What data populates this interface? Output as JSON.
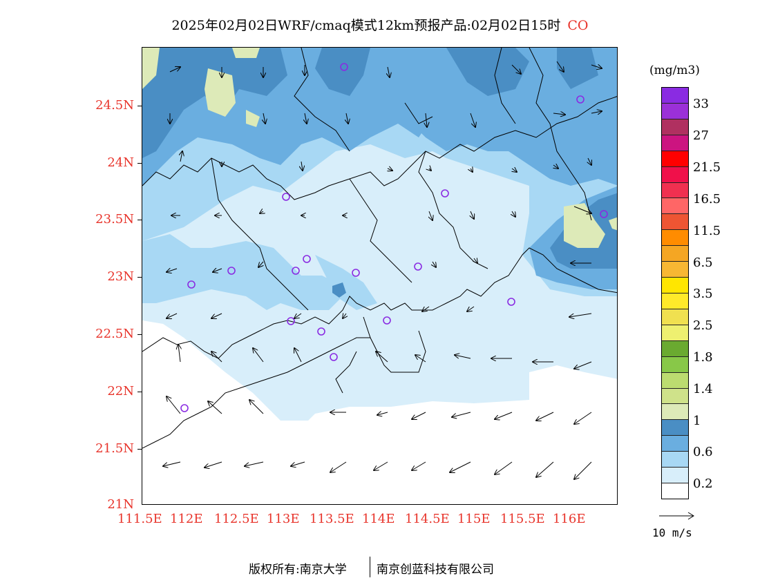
{
  "title": "2025年02月02日WRF/cmaq模式12km预报产品:02月02日15时",
  "species": "CO",
  "lat_labels": [
    "24.5N",
    "24N",
    "23.5N",
    "23N",
    "22.5N",
    "22N",
    "21.5N",
    "21N"
  ],
  "lon_labels": [
    "111.5E",
    "112E",
    "112.5E",
    "113E",
    "113.5E",
    "114E",
    "114.5E",
    "115E",
    "115.5E",
    "116E"
  ],
  "colorbar": {
    "unit": "(mg/m3)",
    "colors": [
      "#8a2be2",
      "#9b30d8",
      "#b03060",
      "#cc1480",
      "#ff0000",
      "#f0104a",
      "#f03050",
      "#ff6666",
      "#ee5533",
      "#ff8c00",
      "#f5a623",
      "#f7b733",
      "#ffe600",
      "#ffea2a",
      "#f0e050",
      "#eef070",
      "#6aaa30",
      "#88c848",
      "#bcdc70",
      "#cfe28a",
      "#ddeab8",
      "#4a8ec4",
      "#6aaee0",
      "#a8d8f4",
      "#d8eefa",
      "#ffffff"
    ],
    "labels": [
      "33",
      "27",
      "21.5",
      "16.5",
      "11.5",
      "6.5",
      "3.5",
      "2.5",
      "1.8",
      "1.4",
      "1",
      "0.6",
      "0.2"
    ]
  },
  "vector_legend": "10 m/s",
  "footer_left": "版权所有:南京大学",
  "footer_right": "南京创蓝科技有限公司"
}
